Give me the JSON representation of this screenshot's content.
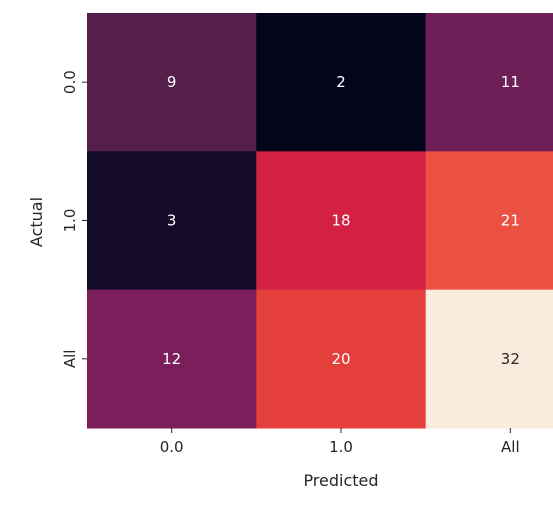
{
  "chart_data": {
    "type": "heatmap",
    "title": "",
    "xlabel": "Predicted",
    "ylabel": "Actual",
    "x_categories": [
      "0.0",
      "1.0",
      "All"
    ],
    "y_categories": [
      "0.0",
      "1.0",
      "All"
    ],
    "values": [
      [
        9,
        2,
        11
      ],
      [
        3,
        18,
        21
      ],
      [
        12,
        20,
        32
      ]
    ],
    "colormap": "rocket",
    "colorbar": false,
    "grid": false,
    "colors": {
      "2": "#03051a",
      "3": "#140c29",
      "9": "#551e4b",
      "11": "#6f1f58",
      "12": "#7c1e5b",
      "18": "#d32144",
      "20": "#e53f3c",
      "21": "#ea5142",
      "32": "#faebdd"
    }
  }
}
